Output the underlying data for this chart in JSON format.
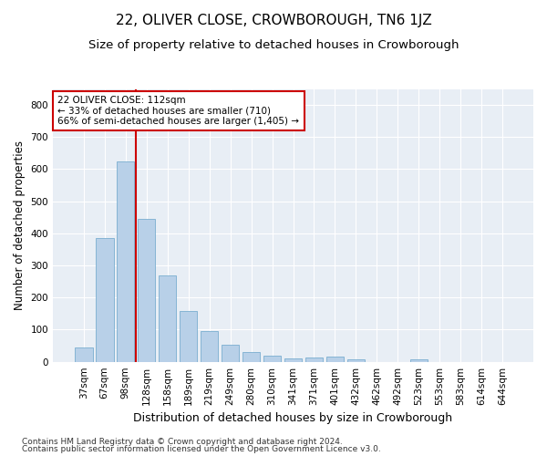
{
  "title": "22, OLIVER CLOSE, CROWBOROUGH, TN6 1JZ",
  "subtitle": "Size of property relative to detached houses in Crowborough",
  "xlabel": "Distribution of detached houses by size in Crowborough",
  "ylabel": "Number of detached properties",
  "categories": [
    "37sqm",
    "67sqm",
    "98sqm",
    "128sqm",
    "158sqm",
    "189sqm",
    "219sqm",
    "249sqm",
    "280sqm",
    "310sqm",
    "341sqm",
    "371sqm",
    "401sqm",
    "432sqm",
    "462sqm",
    "492sqm",
    "523sqm",
    "553sqm",
    "583sqm",
    "614sqm",
    "644sqm"
  ],
  "values": [
    45,
    385,
    625,
    445,
    268,
    157,
    97,
    53,
    29,
    18,
    11,
    12,
    15,
    8,
    0,
    0,
    8,
    0,
    0,
    0,
    0
  ],
  "bar_color": "#b8d0e8",
  "bar_edge_color": "#7aaed0",
  "vline_color": "#cc0000",
  "annotation_text": "22 OLIVER CLOSE: 112sqm\n← 33% of detached houses are smaller (710)\n66% of semi-detached houses are larger (1,405) →",
  "annotation_box_facecolor": "#ffffff",
  "annotation_box_edgecolor": "#cc0000",
  "ylim": [
    0,
    850
  ],
  "yticks": [
    0,
    100,
    200,
    300,
    400,
    500,
    600,
    700,
    800
  ],
  "fig_facecolor": "#ffffff",
  "plot_bg_color": "#e8eef5",
  "grid_color": "#ffffff",
  "footer_line1": "Contains HM Land Registry data © Crown copyright and database right 2024.",
  "footer_line2": "Contains public sector information licensed under the Open Government Licence v3.0.",
  "title_fontsize": 11,
  "subtitle_fontsize": 9.5,
  "xlabel_fontsize": 9,
  "ylabel_fontsize": 8.5,
  "tick_fontsize": 7.5,
  "annotation_fontsize": 7.5,
  "footer_fontsize": 6.5
}
